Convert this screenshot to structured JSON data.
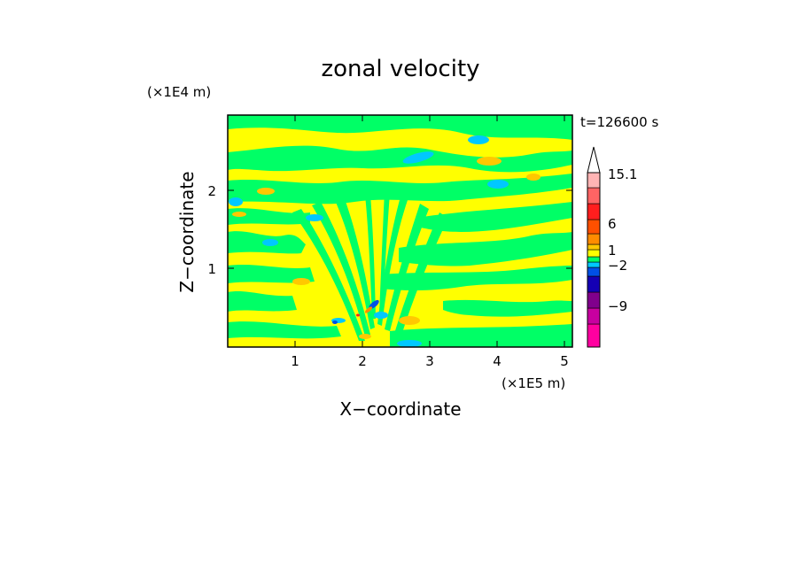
{
  "chart_data": {
    "type": "heatmap",
    "title": "zonal velocity",
    "xlabel": "X−coordinate",
    "ylabel": "Z−coordinate",
    "x_scale_label": "(×1E5 m)",
    "y_scale_label": "(×1E4 m)",
    "time_label": "t=126600 s",
    "xlim": [
      0,
      5.12
    ],
    "ylim": [
      0,
      2.95
    ],
    "x_ticks": [
      1,
      2,
      3,
      4,
      5
    ],
    "x_tick_labels": [
      "1",
      "2",
      "3",
      "4",
      "5"
    ],
    "y_ticks": [
      1,
      2
    ],
    "y_tick_labels": [
      "1",
      "2"
    ],
    "colorbar": {
      "labels": [
        "15.1",
        "6",
        "1",
        "−2",
        "−9"
      ],
      "levels": [
        {
          "color": "#ff00a0"
        },
        {
          "color": "#c800a0"
        },
        {
          "color": "#80008c"
        },
        {
          "color": "#1400b4"
        },
        {
          "color": "#0050e6"
        },
        {
          "color": "#00c8ff"
        },
        {
          "color": "#00ff66"
        },
        {
          "color": "#ffff00"
        },
        {
          "color": "#ffc800"
        },
        {
          "color": "#ff8c00"
        },
        {
          "color": "#ff5000"
        },
        {
          "color": "#ff1e1e"
        },
        {
          "color": "#ff6464"
        },
        {
          "color": "#ffb4b4"
        }
      ]
    }
  }
}
